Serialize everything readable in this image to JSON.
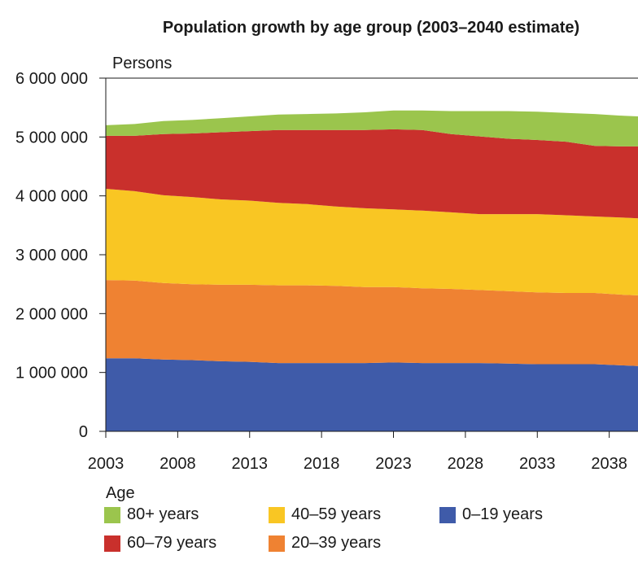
{
  "chart_data": {
    "type": "area",
    "stacked": true,
    "title": "Population growth by age group (2003–2040 estimate)",
    "ylabel": "Persons",
    "ylim": [
      0,
      6000000
    ],
    "yticks": [
      0,
      1000000,
      2000000,
      3000000,
      4000000,
      5000000,
      6000000
    ],
    "ytick_labels": [
      "0",
      "1 000 000",
      "2 000 000",
      "3 000 000",
      "4 000 000",
      "5 000 000",
      "6 000 000"
    ],
    "xlim": [
      2003,
      2040
    ],
    "xticks": [
      2003,
      2008,
      2013,
      2018,
      2023,
      2028,
      2033,
      2038
    ],
    "xtick_labels": [
      "2003",
      "2008",
      "2013",
      "2018",
      "2023",
      "2028",
      "2033",
      "2038"
    ],
    "x": [
      2003,
      2005,
      2007,
      2009,
      2011,
      2013,
      2015,
      2017,
      2019,
      2021,
      2023,
      2025,
      2027,
      2029,
      2031,
      2033,
      2035,
      2037,
      2039,
      2040
    ],
    "series": [
      {
        "name": "0–19 years",
        "color": "#3f5ba9",
        "values": [
          1240000,
          1240000,
          1220000,
          1210000,
          1190000,
          1180000,
          1160000,
          1160000,
          1160000,
          1160000,
          1170000,
          1160000,
          1160000,
          1160000,
          1150000,
          1140000,
          1140000,
          1140000,
          1120000,
          1110000
        ]
      },
      {
        "name": "20–39 years",
        "color": "#ef8232",
        "values": [
          1330000,
          1320000,
          1300000,
          1290000,
          1300000,
          1310000,
          1320000,
          1320000,
          1310000,
          1290000,
          1280000,
          1270000,
          1260000,
          1240000,
          1230000,
          1220000,
          1210000,
          1210000,
          1200000,
          1200000
        ]
      },
      {
        "name": "40–59 years",
        "color": "#f9c623",
        "values": [
          1550000,
          1520000,
          1490000,
          1480000,
          1450000,
          1430000,
          1400000,
          1380000,
          1350000,
          1340000,
          1320000,
          1320000,
          1300000,
          1290000,
          1310000,
          1330000,
          1320000,
          1300000,
          1310000,
          1310000
        ]
      },
      {
        "name": "60–79 years",
        "color": "#c9302c",
        "values": [
          900000,
          940000,
          1040000,
          1080000,
          1140000,
          1180000,
          1240000,
          1260000,
          1300000,
          1330000,
          1360000,
          1370000,
          1330000,
          1320000,
          1280000,
          1260000,
          1250000,
          1200000,
          1210000,
          1220000
        ]
      },
      {
        "name": "80+ years",
        "color": "#9bc54d",
        "values": [
          180000,
          200000,
          220000,
          230000,
          240000,
          250000,
          260000,
          270000,
          280000,
          300000,
          320000,
          330000,
          390000,
          430000,
          470000,
          480000,
          490000,
          540000,
          520000,
          510000
        ]
      }
    ],
    "legend": {
      "title": "Age",
      "placement": "bottom",
      "items": [
        "80+ years",
        "40–59 years",
        "0–19 years",
        "60–79 years",
        "20–39 years"
      ]
    },
    "grid": false
  }
}
